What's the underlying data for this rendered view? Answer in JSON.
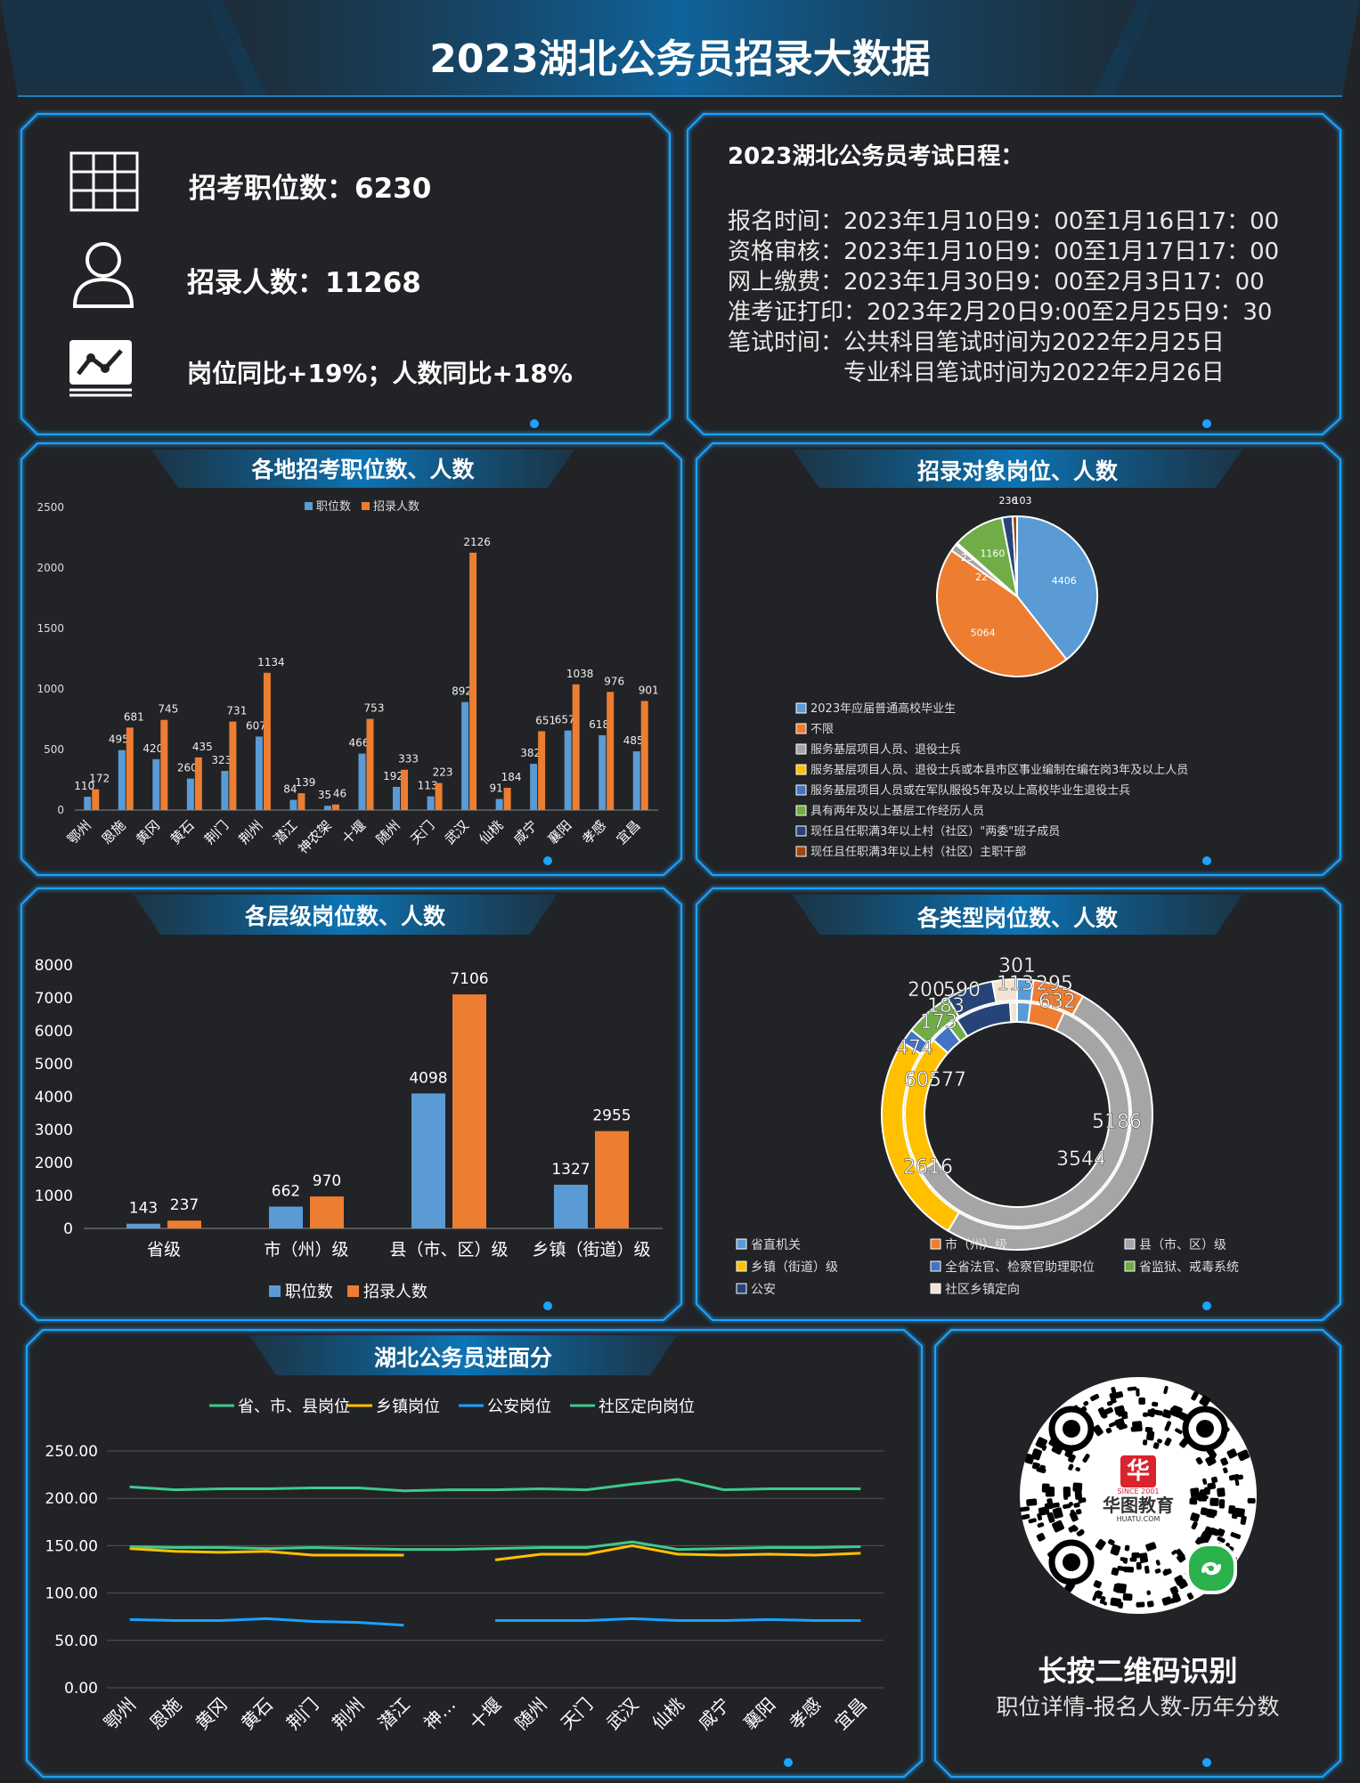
{
  "header": {
    "title": "2023湖北公务员招录大数据"
  },
  "stats": {
    "positions_label": "招考职位数：6230",
    "people_label": "招录人数：11268",
    "yoy_label": "岗位同比+19%；人数同比+18%"
  },
  "schedule": {
    "title": "2023湖北公务员考试日程：",
    "lines": [
      "报名时间：2023年1月10日9：00至1月16日17：00",
      "资格审核：2023年1月10日9：00至1月17日17：00",
      "网上缴费：2023年1月30日9：00至2月3日17：00",
      "准考证打印：2023年2月20日9:00至2月25日9：30",
      "笔试时间：公共科目笔试时间为2022年2月25日",
      "　　　　　专业科目笔试时间为2022年2月26日"
    ]
  },
  "colors": {
    "blue": "#5b9bd5",
    "orange": "#ed7d31",
    "gray": "#a5a5a5",
    "yellow": "#ffc000",
    "green": "#70ad47",
    "teal": "#3ec98e",
    "accent": "#1aa3ff"
  },
  "chart_data": [
    {
      "id": "regions",
      "type": "bar",
      "title": "各地招考职位数、人数",
      "categories": [
        "鄂州",
        "恩施",
        "黄冈",
        "黄石",
        "荆门",
        "荆州",
        "潜江",
        "神农架",
        "十堰",
        "随州",
        "天门",
        "武汉",
        "仙桃",
        "咸宁",
        "襄阳",
        "孝感",
        "宜昌"
      ],
      "series": [
        {
          "name": "职位数",
          "values": [
            110,
            495,
            420,
            260,
            323,
            607,
            84,
            35,
            466,
            192,
            113,
            892,
            91,
            382,
            657,
            618,
            485
          ]
        },
        {
          "name": "招录人数",
          "values": [
            172,
            681,
            745,
            435,
            731,
            1134,
            139,
            46,
            753,
            333,
            223,
            2126,
            184,
            651,
            1038,
            976,
            901
          ]
        }
      ],
      "yticks": [
        0,
        500,
        1000,
        1500,
        2000,
        2500
      ],
      "ylim": [
        0,
        2500
      ],
      "legend": "top"
    },
    {
      "id": "targets",
      "type": "pie",
      "title": "招录对象岗位、人数",
      "slices": [
        {
          "label": "2023年应届普通高校毕业生",
          "value": 4406,
          "color": "#5b9bd5"
        },
        {
          "label": "不限",
          "value": 5064,
          "color": "#ed7d31"
        },
        {
          "label": "服务基层项目人员、退役士兵",
          "value": 164,
          "color": "#a5a5a5"
        },
        {
          "label": "服务基层项目人员、退役士兵或本县市区事业编制在编在岗3年及以上人员",
          "value": 23,
          "color": "#ffc000"
        },
        {
          "label": "服务基层项目人员或在军队服役5年及以上高校毕业生退役士兵",
          "value": 22,
          "color": "#4472c4"
        },
        {
          "label": "具有两年及以上基层工作经历人员",
          "value": 1160,
          "color": "#70ad47"
        },
        {
          "label": "现任且任职满3年以上村（社区）\"两委\"班子成员",
          "value": 236,
          "color": "#264478"
        },
        {
          "label": "现任且任职满3年以上村（社区）主职干部",
          "value": 103,
          "color": "#9e480e"
        }
      ],
      "value_labels": [
        "4406",
        "5064",
        "164",
        "23",
        "22",
        "1160",
        "236",
        "103"
      ]
    },
    {
      "id": "levels",
      "type": "bar",
      "title": "各层级岗位数、人数",
      "categories": [
        "省级",
        "市（州）级",
        "县（市、区）级",
        "乡镇（街道）级"
      ],
      "series": [
        {
          "name": "职位数",
          "values": [
            143,
            662,
            4098,
            1327
          ]
        },
        {
          "name": "招录人数",
          "values": [
            237,
            970,
            7106,
            2955
          ]
        }
      ],
      "yticks": [
        0,
        1000,
        2000,
        3000,
        4000,
        5000,
        6000,
        7000,
        8000
      ],
      "ylim": [
        0,
        8000
      ],
      "legend": "bottom"
    },
    {
      "id": "types",
      "type": "pie",
      "title": "各类型岗位数、人数",
      "categories": [
        "省直机关",
        "市（州）级",
        "县（市、区）级",
        "乡镇（街道）级",
        "全省法官、检察官助理职位",
        "省监狱、戒毒系统",
        "公安",
        "社区乡镇定向"
      ],
      "series": [
        {
          "name": "职位数",
          "values": [
            113,
            295,
            3544,
            1183,
            173,
            90,
            474,
            60
          ]
        },
        {
          "name": "招录人数",
          "values": [
            200,
            632,
            5186,
            2616,
            183,
            590,
            577,
            301
          ]
        }
      ],
      "value_labels": [
        "200",
        "590",
        "183",
        "173",
        "474",
        "60",
        "577",
        "5186",
        "3544",
        "2616",
        "301",
        "113",
        "295",
        "632"
      ]
    },
    {
      "id": "scores",
      "type": "line",
      "title": "湖北公务员进面分",
      "categories": [
        "鄂州",
        "恩施",
        "黄冈",
        "黄石",
        "荆门",
        "荆州",
        "潜江",
        "神…",
        "十堰",
        "随州",
        "天门",
        "武汉",
        "仙桃",
        "咸宁",
        "襄阳",
        "孝感",
        "宜昌"
      ],
      "series": [
        {
          "name": "省、市、县岗位",
          "color": "#3ec98e",
          "values": [
            212,
            209,
            210,
            210,
            211,
            211,
            208,
            209,
            209,
            210,
            209,
            215,
            220,
            209,
            210,
            210,
            210
          ]
        },
        {
          "name": "乡镇岗位",
          "color": "#ffc000",
          "values": [
            147,
            144,
            143,
            144,
            140,
            140,
            140,
            null,
            135,
            141,
            141,
            150,
            141,
            140,
            141,
            140,
            142
          ]
        },
        {
          "name": "公安岗位",
          "color": "#1aa3ff",
          "values": [
            72,
            71,
            71,
            73,
            70,
            69,
            66,
            null,
            71,
            71,
            71,
            73,
            71,
            71,
            72,
            71,
            71
          ]
        },
        {
          "name": "社区定向岗位",
          "color": "#3ec98e",
          "values": [
            149,
            148,
            148,
            147,
            148,
            147,
            146,
            146,
            147,
            148,
            148,
            154,
            146,
            147,
            148,
            148,
            149
          ]
        }
      ],
      "yticks": [
        "0.00",
        "50.00",
        "100.00",
        "150.00",
        "200.00",
        "250.00"
      ],
      "ylim": [
        0,
        250
      ],
      "legend": "top"
    }
  ],
  "qr": {
    "logo_text": "华图教育",
    "logo_since": "SINCE 2001",
    "logo_url": "HUATU.COM",
    "caption_main": "长按二维码识别",
    "caption_sub": "职位详情-报名人数-历年分数"
  }
}
